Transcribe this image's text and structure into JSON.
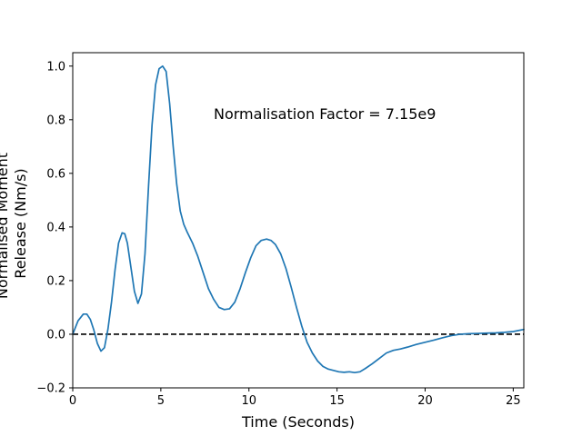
{
  "chart_data": {
    "type": "line",
    "title": "",
    "xlabel": "Time (Seconds)",
    "ylabel_lines": [
      "Normalised Moment",
      "Release (Nm/s)"
    ],
    "xlim": [
      0,
      25.6
    ],
    "ylim": [
      -0.2,
      1.05
    ],
    "xticks": [
      0,
      5,
      10,
      15,
      20,
      25
    ],
    "yticks": [
      -0.2,
      0.0,
      0.2,
      0.4,
      0.6,
      0.8,
      1.0
    ],
    "xtick_labels": [
      "0",
      "5",
      "10",
      "15",
      "20",
      "25"
    ],
    "ytick_labels": [
      "−0.2",
      "0.0",
      "0.2",
      "0.4",
      "0.6",
      "0.8",
      "1.0"
    ],
    "annotation": "Normalisation Factor = 7.15e9",
    "annotation_position": {
      "x": 8.0,
      "y": 0.82
    },
    "line_color": "#1f77b4",
    "reference_line": {
      "y": 0.0,
      "style": "dashed",
      "color": "#000000"
    },
    "grid": false,
    "series": [
      {
        "x": [
          0.0,
          0.3,
          0.6,
          0.8,
          1.0,
          1.2,
          1.4,
          1.6,
          1.8,
          2.0,
          2.2,
          2.4,
          2.6,
          2.8,
          2.95,
          3.1,
          3.3,
          3.5,
          3.7,
          3.9,
          4.1,
          4.3,
          4.5,
          4.7,
          4.9,
          5.1,
          5.3,
          5.5,
          5.7,
          5.9,
          6.1,
          6.3,
          6.5,
          6.8,
          7.1,
          7.4,
          7.7,
          8.0,
          8.3,
          8.6,
          8.9,
          9.2,
          9.5,
          9.8,
          10.1,
          10.4,
          10.7,
          11.0,
          11.25,
          11.5,
          11.8,
          12.1,
          12.4,
          12.7,
          13.0,
          13.3,
          13.6,
          13.9,
          14.2,
          14.5,
          14.8,
          15.1,
          15.4,
          15.7,
          16.0,
          16.3,
          16.6,
          17.0,
          17.4,
          17.8,
          18.2,
          18.6,
          19.0,
          19.5,
          20.0,
          20.5,
          21.0,
          21.5,
          22.0,
          22.5,
          23.0,
          23.5,
          24.0,
          24.5,
          25.0,
          25.6
        ],
        "y": [
          0.0,
          0.05,
          0.075,
          0.075,
          0.055,
          0.015,
          -0.035,
          -0.063,
          -0.05,
          0.02,
          0.12,
          0.24,
          0.34,
          0.378,
          0.375,
          0.34,
          0.25,
          0.16,
          0.115,
          0.15,
          0.3,
          0.55,
          0.78,
          0.93,
          0.99,
          1.0,
          0.98,
          0.86,
          0.7,
          0.56,
          0.46,
          0.41,
          0.38,
          0.34,
          0.29,
          0.23,
          0.17,
          0.13,
          0.1,
          0.092,
          0.095,
          0.12,
          0.17,
          0.23,
          0.285,
          0.33,
          0.35,
          0.355,
          0.35,
          0.335,
          0.3,
          0.245,
          0.175,
          0.1,
          0.03,
          -0.03,
          -0.07,
          -0.1,
          -0.12,
          -0.13,
          -0.135,
          -0.14,
          -0.142,
          -0.14,
          -0.143,
          -0.14,
          -0.128,
          -0.11,
          -0.09,
          -0.07,
          -0.06,
          -0.055,
          -0.048,
          -0.038,
          -0.03,
          -0.022,
          -0.013,
          -0.005,
          0.0,
          0.002,
          0.003,
          0.004,
          0.005,
          0.007,
          0.01,
          0.018
        ]
      }
    ]
  }
}
